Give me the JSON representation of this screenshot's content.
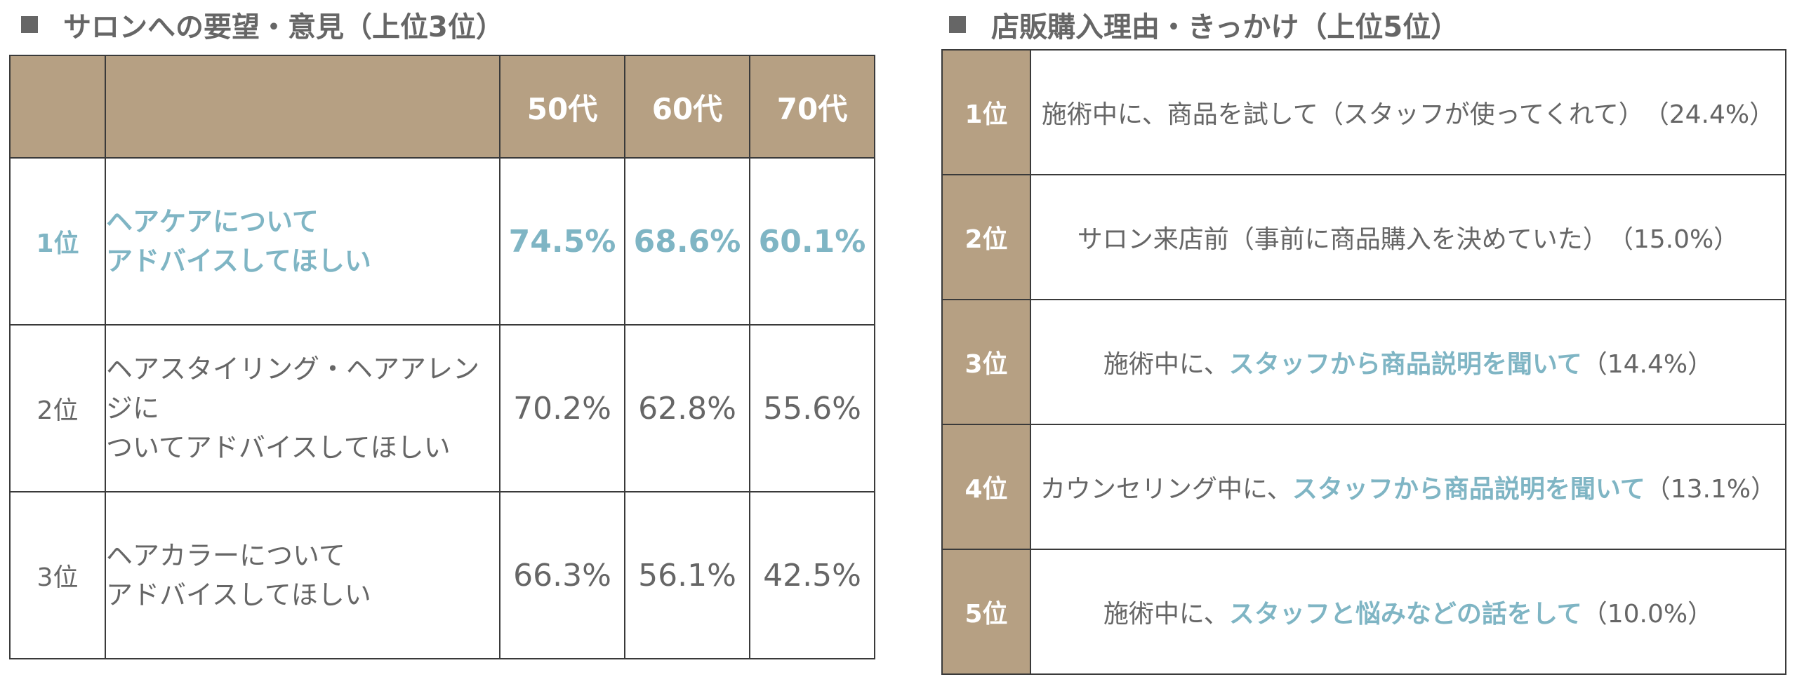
{
  "left": {
    "title": "サロンへの要望・意見（上位3位）",
    "headers": [
      "",
      "",
      "50代",
      "60代",
      "70代"
    ],
    "rows": [
      {
        "rank": "1位",
        "item_line1": "ヘアケアについて",
        "item_line2": "アドバイスしてほしい",
        "values": [
          "74.5%",
          "68.6%",
          "60.1%"
        ]
      },
      {
        "rank": "2位",
        "item_line1": "ヘアスタイリング・ヘアアレンジに",
        "item_line2": "ついてアドバイスしてほしい",
        "values": [
          "70.2%",
          "62.8%",
          "55.6%"
        ]
      },
      {
        "rank": "3位",
        "item_line1": "ヘアカラーについて",
        "item_line2": "アドバイスしてほしい",
        "values": [
          "66.3%",
          "56.1%",
          "42.5%"
        ]
      }
    ]
  },
  "right": {
    "title": "店販購入理由・きっかけ（上位5位）",
    "items": [
      {
        "rank": "1位",
        "text_pre": "施術中に、商品を試して（スタッフが使ってくれて）",
        "text_hl": "",
        "text_post": "（24.4%）"
      },
      {
        "rank": "2位",
        "text_pre": "サロン来店前（事前に商品購入を決めていた）",
        "text_hl": "",
        "text_post": "（15.0%）"
      },
      {
        "rank": "3位",
        "text_pre": "施術中に、",
        "text_hl": "スタッフから商品説明を聞いて",
        "text_post": "（14.4%）"
      },
      {
        "rank": "4位",
        "text_pre": "カウンセリング中に、",
        "text_hl": "スタッフから商品説明を聞いて",
        "text_post": "（13.1%）"
      },
      {
        "rank": "5位",
        "text_pre": "施術中に、",
        "text_hl": "スタッフと悩みなどの話をして",
        "text_post": "（10.0%）"
      }
    ]
  },
  "colors": {
    "header_bg": "#b6a083",
    "highlight": "#7fb5c4",
    "text": "#666666",
    "border": "#3a3a3a"
  }
}
